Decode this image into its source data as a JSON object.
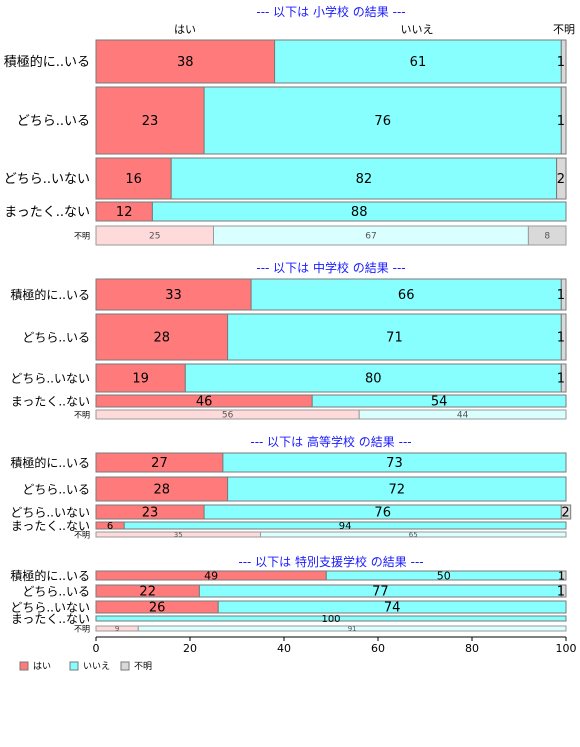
{
  "chart_data": {
    "type": "bar",
    "orientation": "horizontal",
    "stacked": true,
    "xlim": [
      0,
      100
    ],
    "xticks": [
      "0",
      "20",
      "40",
      "60",
      "80",
      "100"
    ],
    "grid": false,
    "legend_position": "bottom-left",
    "series_names": [
      "はい",
      "いいえ",
      "不明"
    ],
    "colors": {
      "yes": "#ff7b7b",
      "no": "#87ffff",
      "unknown": "#d9d9d9",
      "yes_light": "#ffdada",
      "no_light": "#daffff",
      "unknown_light": "#d9d9d9",
      "title": "#1a1aff"
    },
    "top_headers": [
      "はい",
      "いいえ",
      "不明"
    ],
    "panels": [
      {
        "title": "--- 以下は 小学校 の結果 ---",
        "rows": [
          {
            "label": "積極的に..いる",
            "values": [
              38,
              61,
              1
            ]
          },
          {
            "label": "どちら..いる",
            "values": [
              23,
              76,
              1
            ]
          },
          {
            "label": "どちら..いない",
            "values": [
              16,
              82,
              2
            ]
          },
          {
            "label": "まったく..ない",
            "values": [
              12,
              88,
              0
            ]
          },
          {
            "label": "不明",
            "values": [
              25,
              67,
              8
            ],
            "muted": true
          }
        ]
      },
      {
        "title": "--- 以下は 中学校 の結果 ---",
        "rows": [
          {
            "label": "積極的に..いる",
            "values": [
              33,
              66,
              1
            ]
          },
          {
            "label": "どちら..いる",
            "values": [
              28,
              71,
              1
            ]
          },
          {
            "label": "どちら..いない",
            "values": [
              19,
              80,
              1
            ]
          },
          {
            "label": "まったく..ない",
            "values": [
              46,
              54,
              0
            ]
          },
          {
            "label": "不明",
            "values": [
              56,
              44,
              0
            ],
            "muted": true
          }
        ]
      },
      {
        "title": "--- 以下は 高等学校 の結果 ---",
        "rows": [
          {
            "label": "積極的に..いる",
            "values": [
              27,
              73,
              0
            ]
          },
          {
            "label": "どちら..いる",
            "values": [
              28,
              72,
              0
            ]
          },
          {
            "label": "どちら..いない",
            "values": [
              23,
              76,
              2
            ]
          },
          {
            "label": "まったく..ない",
            "values": [
              6,
              94,
              0
            ]
          },
          {
            "label": "不明",
            "values": [
              35,
              65,
              0
            ],
            "muted": true
          }
        ]
      },
      {
        "title": "--- 以下は 特別支援学校 の結果 ---",
        "rows": [
          {
            "label": "積極的に..いる",
            "values": [
              49,
              50,
              1
            ]
          },
          {
            "label": "どちら..いる",
            "values": [
              22,
              77,
              1
            ]
          },
          {
            "label": "どちら..いない",
            "values": [
              26,
              74,
              0
            ]
          },
          {
            "label": "まったく..ない",
            "values": [
              0,
              100,
              0
            ]
          },
          {
            "label": "不明",
            "values": [
              9,
              91,
              0
            ],
            "muted": true
          }
        ]
      }
    ]
  }
}
